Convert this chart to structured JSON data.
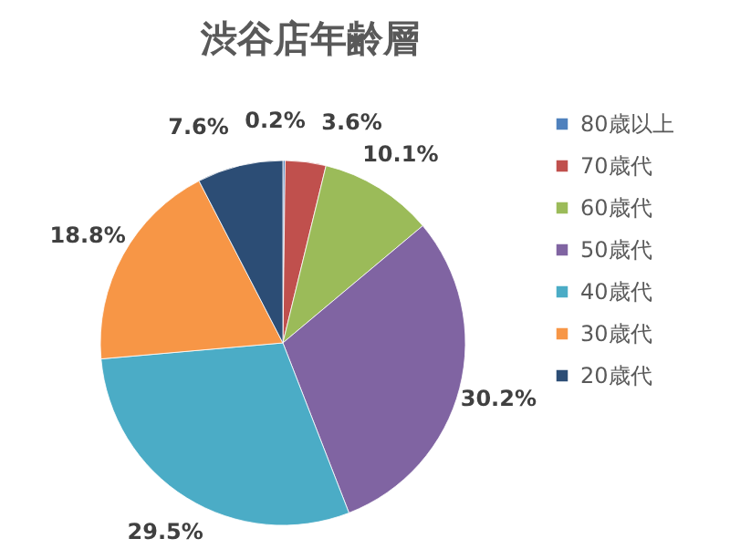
{
  "chart_data": {
    "type": "pie",
    "title": "渋谷店年齢層",
    "categories": [
      "80歳以上",
      "70歳代",
      "60歳代",
      "50歳代",
      "40歳代",
      "30歳代",
      "20歳代"
    ],
    "values": [
      0.2,
      3.6,
      10.1,
      30.2,
      29.5,
      18.8,
      7.6
    ],
    "value_labels": [
      "0.2%",
      "3.6%",
      "10.1%",
      "30.2%",
      "29.5%",
      "18.8%",
      "7.6%"
    ],
    "colors": [
      "#4f81bd",
      "#c0504d",
      "#9bbb59",
      "#8064a2",
      "#4bacc6",
      "#f79646",
      "#2c4d75"
    ],
    "legend": "right"
  }
}
